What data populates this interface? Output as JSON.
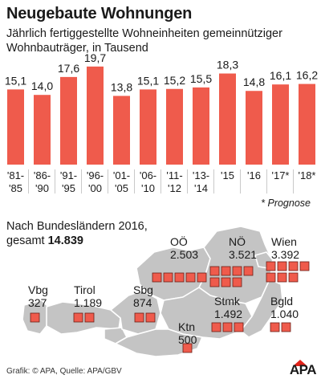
{
  "title": "Neugebaute Wohnungen",
  "subtitle": "Jährlich fertiggestellte Wohneinheiten gemeinnütziger Wohnbauträger, in Tausend",
  "note": "* Prognose",
  "states_heading_prefix": "Nach Bundesländern 2016,",
  "states_heading_line2": "gesamt",
  "states_total": "14.839",
  "footer": "Grafik: © APA, Quelle: APA/GBV",
  "logo": "APA",
  "colors": {
    "bar": "#ef5b4c",
    "map_region": "#c4c4c4",
    "logo_accent": "#e2231a"
  },
  "chart_data": {
    "type": "bar",
    "title": "Neugebaute Wohnungen",
    "categories": [
      [
        "'81-",
        "'85"
      ],
      [
        "'86-",
        "'90"
      ],
      [
        "'91-",
        "'95"
      ],
      [
        "'96-",
        "'00"
      ],
      [
        "'01-",
        "'05"
      ],
      [
        "'06-",
        "'10"
      ],
      [
        "'11-",
        "'12"
      ],
      [
        "'13-",
        "'14"
      ],
      [
        "'15"
      ],
      [
        "'16"
      ],
      [
        "'17*"
      ],
      [
        "'18*"
      ]
    ],
    "values": [
      15.1,
      14.0,
      17.6,
      19.7,
      13.8,
      15.1,
      15.2,
      15.5,
      18.3,
      14.8,
      16.1,
      16.2
    ],
    "value_labels": [
      "15,1",
      "14,0",
      "17,6",
      "19,7",
      "13,8",
      "15,1",
      "15,2",
      "15,5",
      "18,3",
      "14,8",
      "16,1",
      "16,2"
    ],
    "ylim": [
      0,
      20
    ],
    "grid": false
  },
  "states": [
    {
      "name": "OÖ",
      "value_label": "2.503",
      "value": 2503,
      "squares": 5
    },
    {
      "name": "NÖ",
      "value_label": "3.521",
      "value": 3521,
      "squares": 7
    },
    {
      "name": "Wien",
      "value_label": "3.392",
      "value": 3392,
      "squares": 7
    },
    {
      "name": "Vbg",
      "value_label": "327",
      "value": 327,
      "squares": 1
    },
    {
      "name": "Tirol",
      "value_label": "1.189",
      "value": 1189,
      "squares": 2
    },
    {
      "name": "Sbg",
      "value_label": "874",
      "value": 874,
      "squares": 2
    },
    {
      "name": "Ktn",
      "value_label": "500",
      "value": 500,
      "squares": 1
    },
    {
      "name": "Stmk",
      "value_label": "1.492",
      "value": 1492,
      "squares": 3
    },
    {
      "name": "Bgld",
      "value_label": "1.040",
      "value": 1040,
      "squares": 2
    }
  ]
}
